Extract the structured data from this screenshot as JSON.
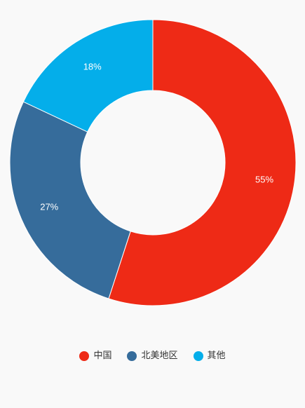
{
  "chart_data": {
    "type": "pie",
    "variant": "donut",
    "title": "",
    "categories": [
      "中国",
      "北美地区",
      "其他"
    ],
    "values": [
      55,
      27,
      18
    ],
    "labels": [
      "55%",
      "27%",
      "18%"
    ],
    "colors": [
      "#ee2a16",
      "#366c9b",
      "#04aeea"
    ],
    "legend_position": "bottom"
  },
  "legend": {
    "items": [
      {
        "label": "中国",
        "color": "#ee2a16"
      },
      {
        "label": "北美地区",
        "color": "#366c9b"
      },
      {
        "label": "其他",
        "color": "#04aeea"
      }
    ]
  }
}
